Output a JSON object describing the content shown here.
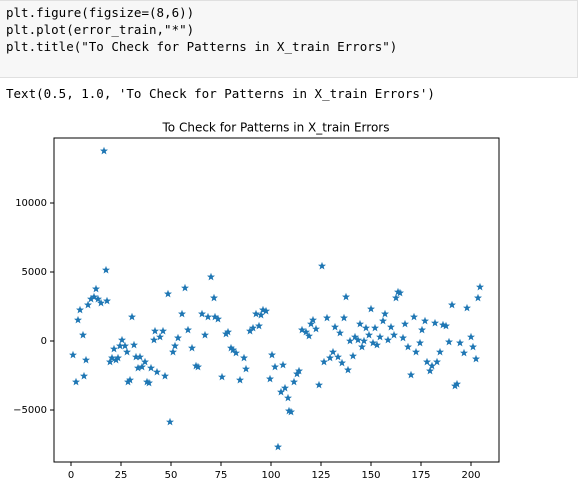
{
  "code": {
    "lines": [
      "plt.figure(figsize=(8,6))",
      "plt.plot(error_train,\"*\")",
      "plt.title(\"To Check for Patterns in X_train Errors\")"
    ]
  },
  "output": {
    "text": "Text(0.5, 1.0, 'To Check for Patterns in X_train Errors')"
  },
  "chart_data": {
    "type": "scatter",
    "title": "To Check for Patterns in X_train Errors",
    "color": "#1f77b4",
    "xlim": [
      -8.5,
      214
    ],
    "ylim": [
      -8768,
      14710
    ],
    "xticks": [
      0,
      25,
      50,
      75,
      100,
      125,
      150,
      175,
      200
    ],
    "yticks": [
      {
        "value": -5000,
        "label": "−5000"
      },
      0,
      5000,
      10000
    ],
    "x": [
      1,
      2.5,
      3.5,
      4.5,
      6,
      6.5,
      7.5,
      8.5,
      10,
      11.5,
      12.5,
      13.5,
      15,
      16.5,
      17.5,
      18,
      19.5,
      20.5,
      21.5,
      22.5,
      23.5,
      24.5,
      25.5,
      27,
      28,
      28.5,
      29.5,
      30.5,
      31.5,
      32.5,
      33.5,
      34.5,
      35.5,
      37,
      38,
      39,
      40,
      41.5,
      42,
      43,
      44.5,
      46,
      47,
      48.5,
      49.5,
      51,
      52,
      53.5,
      55.5,
      57,
      58.5,
      60.5,
      62.5,
      63.5,
      65.5,
      67,
      68.5,
      70,
      71.5,
      72,
      73.5,
      75.5,
      77.5,
      78.5,
      80,
      81,
      82.5,
      84.5,
      86.5,
      87.5,
      89.5,
      91,
      92.5,
      94,
      95,
      96,
      97.5,
      99.5,
      100.5,
      102,
      103.5,
      105,
      106,
      107,
      108.5,
      109,
      110,
      111.5,
      113,
      114,
      115.5,
      117.5,
      119,
      120,
      121,
      122.5,
      124,
      125.5,
      126.5,
      128,
      129.5,
      131,
      132,
      133.5,
      134.5,
      135.5,
      136.5,
      137.5,
      138.5,
      139.5,
      141,
      142,
      143.5,
      144.5,
      145.5,
      146.5,
      147.5,
      149,
      150,
      151,
      152,
      153,
      154.5,
      156,
      157,
      158.5,
      160,
      161.5,
      162.5,
      163.5,
      164.5,
      166,
      167,
      168.5,
      170,
      171.5,
      172.5,
      174.5,
      175.5,
      177,
      178,
      179.5,
      180.5,
      182,
      183,
      184.5,
      186,
      187.5,
      189,
      190.5,
      192,
      193,
      194.5,
      196.5,
      198,
      200,
      201,
      202.5,
      203.5,
      204.5
    ],
    "values": [
      -1014,
      -2970,
      1520,
      2250,
      430,
      -2540,
      -1380,
      2610,
      3040,
      3190,
      3770,
      3040,
      2750,
      13770,
      5140,
      2900,
      -1520,
      -1230,
      -580,
      -1380,
      -1230,
      -360,
      70,
      -360,
      -800,
      -2970,
      -2830,
      1740,
      -290,
      -1160,
      -1960,
      -1160,
      -1880,
      -1520,
      -2970,
      -3040,
      -1960,
      70,
      720,
      -2250,
      290,
      720,
      -2540,
      3410,
      -5870,
      -800,
      -360,
      220,
      1960,
      3840,
      800,
      -510,
      -1810,
      -1880,
      1960,
      430,
      1740,
      4640,
      3120,
      1740,
      1590,
      -2610,
      510,
      650,
      -510,
      -650,
      -870,
      -2830,
      -1230,
      -2030,
      720,
      940,
      1960,
      1090,
      1880,
      2250,
      2170,
      -2750,
      -1010,
      -1880,
      -7680,
      -3700,
      -1740,
      -3410,
      -4130,
      -5070,
      -5140,
      -2970,
      -2390,
      -2170,
      800,
      650,
      360,
      1230,
      1520,
      870,
      -3190,
      5430,
      -1520,
      1670,
      -1230,
      -800,
      1010,
      -1160,
      580,
      -1590,
      1670,
      3190,
      -2100,
      0,
      -1090,
      290,
      70,
      1230,
      -430,
      0,
      940,
      430,
      2320,
      -140,
      940,
      -290,
      290,
      1450,
      1960,
      70,
      1010,
      430,
      3120,
      3550,
      3480,
      220,
      1230,
      -430,
      -2460,
      1740,
      -800,
      -140,
      800,
      1450,
      -1520,
      -2170,
      -1810,
      1300,
      -1520,
      -800,
      1160,
      1090,
      -70,
      2610,
      -3260,
      -3120,
      -140,
      -870,
      2390,
      290,
      -430,
      -1300,
      3120,
      3910
    ]
  }
}
